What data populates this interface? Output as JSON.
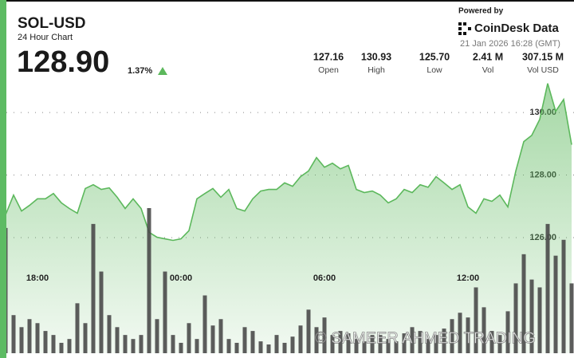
{
  "header": {
    "symbol": "SOL-USD",
    "subtitle": "24 Hour Chart",
    "price": "128.90",
    "change": "1.37%",
    "powered_by": "Powered by",
    "brand": "CoinDesk Data",
    "timestamp": "21 Jan 2026 16:28 (GMT)",
    "stats": [
      {
        "value": "127.16",
        "label": "Open"
      },
      {
        "value": "130.93",
        "label": "High"
      },
      {
        "value": "125.70",
        "label": "Low"
      },
      {
        "value": "2.41 M",
        "label": "Vol"
      },
      {
        "value": "307.15 M",
        "label": "Vol USD"
      }
    ],
    "watermark": "© SAMEER AHMED TRADING"
  },
  "chart_data": [
    {
      "type": "area",
      "color": "#5cb85c",
      "categories": [
        null,
        null,
        null,
        null,
        "18:00",
        null,
        null,
        null,
        null,
        null,
        null,
        null,
        null,
        null,
        null,
        null,
        null,
        null,
        null,
        null,
        null,
        null,
        "00:00",
        null,
        null,
        null,
        null,
        null,
        null,
        null,
        null,
        null,
        null,
        null,
        null,
        null,
        null,
        null,
        null,
        null,
        "06:00",
        null,
        null,
        null,
        null,
        null,
        null,
        null,
        null,
        null,
        null,
        null,
        null,
        null,
        null,
        null,
        null,
        null,
        "12:00",
        null,
        null,
        null,
        null,
        null,
        null,
        null,
        null,
        null,
        null,
        null,
        null,
        null
      ],
      "values": [
        126.73,
        127.36,
        126.85,
        127.03,
        127.24,
        127.24,
        127.41,
        127.11,
        126.93,
        126.78,
        127.57,
        127.69,
        127.54,
        127.59,
        127.29,
        126.93,
        127.24,
        126.93,
        126.17,
        126.01,
        125.96,
        125.91,
        125.96,
        126.22,
        127.24,
        127.41,
        127.57,
        127.29,
        127.54,
        126.93,
        126.85,
        127.24,
        127.49,
        127.54,
        127.54,
        127.75,
        127.64,
        127.95,
        128.13,
        128.56,
        128.25,
        128.38,
        128.2,
        128.31,
        127.54,
        127.44,
        127.49,
        127.36,
        127.11,
        127.24,
        127.54,
        127.44,
        127.69,
        127.61,
        127.95,
        127.75,
        127.54,
        127.69,
        126.98,
        126.78,
        127.24,
        127.16,
        127.36,
        126.98,
        128.13,
        129.07,
        129.27,
        129.78,
        130.93,
        130.04,
        130.42,
        128.97
      ],
      "ylim": [
        122.3,
        131.05
      ],
      "yticks": [
        {
          "value": 126,
          "label": "126.00"
        },
        {
          "value": 128,
          "label": "128.00"
        },
        {
          "value": 130,
          "label": "130.00"
        }
      ],
      "grid": true
    },
    {
      "type": "bar",
      "color": "#4a4a4a",
      "values": [
        68700,
        20900,
        14300,
        18700,
        16500,
        12200,
        10000,
        5700,
        7800,
        27400,
        16500,
        70900,
        44800,
        20900,
        14300,
        10000,
        7800,
        10000,
        79600,
        18700,
        44800,
        10000,
        5700,
        16500,
        7800,
        31700,
        15200,
        18700,
        7800,
        5700,
        14300,
        12200,
        6500,
        4800,
        10000,
        5700,
        9100,
        15200,
        23900,
        14300,
        19600,
        10000,
        12200,
        10900,
        7800,
        6500,
        10000,
        10000,
        7800,
        6500,
        10900,
        14300,
        12200,
        7800,
        10000,
        13500,
        18700,
        22200,
        19600,
        36100,
        25200,
        12200,
        10000,
        23000,
        38300,
        54300,
        40400,
        36100,
        70900,
        53500,
        62200,
        38300
      ],
      "ylim": [
        0,
        150000
      ]
    }
  ]
}
